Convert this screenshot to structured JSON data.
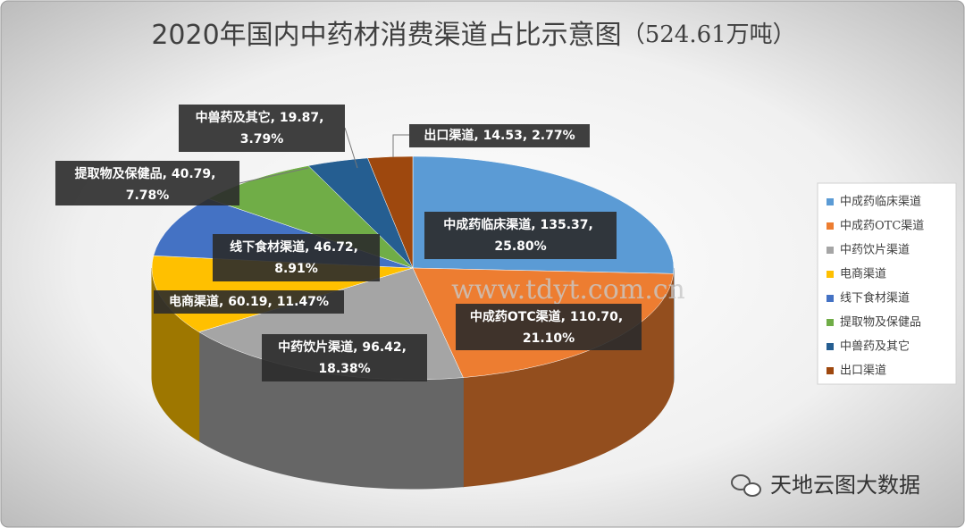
{
  "chart_data": {
    "type": "pie3d",
    "title": "2020年国内中药材消费渠道占比示意图",
    "subtitle": "（524.61万吨）",
    "categories": [
      "中成药临床渠道",
      "中成药OTC渠道",
      "中药饮片渠道",
      "电商渠道",
      "线下食材渠道",
      "提取物及保健品",
      "中兽药及其它",
      "出口渠道"
    ],
    "values": [
      135.37,
      110.7,
      96.42,
      60.19,
      46.72,
      40.79,
      19.87,
      14.53
    ],
    "value_labels": [
      "135.37",
      "110.70",
      "96.42",
      "60.19",
      "46.72",
      "40.79",
      "19.87",
      "14.53"
    ],
    "percent_labels": [
      "25.80%",
      "21.10%",
      "18.38%",
      "11.47%",
      "8.91%",
      "7.78%",
      "3.79%",
      "2.77%"
    ],
    "label_separator": ", ",
    "colors": [
      "#5b9bd5",
      "#ed7d31",
      "#a5a5a5",
      "#ffc000",
      "#4472c4",
      "#70ad47",
      "#255e91",
      "#9e480e"
    ],
    "legend": "right",
    "watermark": "www.tdyt.com.cn",
    "source": "天地云图大数据"
  }
}
